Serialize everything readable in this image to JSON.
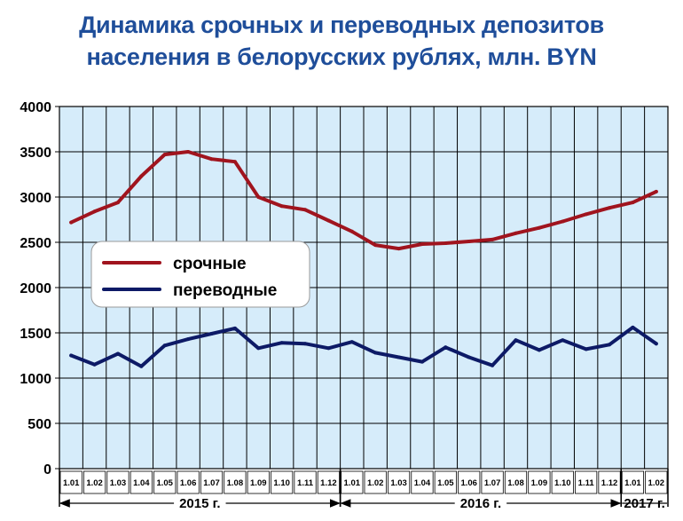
{
  "title_lines": [
    "Динамика срочных и переводных депозитов",
    "населения в белорусских рублях, млн. BYN"
  ],
  "colors": {
    "plot_bg": "#d6ecfa",
    "grid": "#000000",
    "title": "#1f4e9a"
  },
  "chart_data": {
    "type": "line",
    "title": "Динамика срочных и переводных депозитов населения в белорусских рублях, млн. BYN",
    "xlabel": "",
    "ylabel": "",
    "ylim": [
      0,
      4000
    ],
    "yticks": [
      "0",
      "500",
      "1000",
      "1500",
      "2000",
      "2500",
      "3000",
      "3500",
      "4000"
    ],
    "grid": true,
    "legend_position": "center-left",
    "categories": [
      "1.01",
      "1.02",
      "1.03",
      "1.04",
      "1.05",
      "1.06",
      "1.07",
      "1.08",
      "1.09",
      "1.10",
      "1.11",
      "1.12",
      "1.01",
      "1.02",
      "1.03",
      "1.04",
      "1.05",
      "1.06",
      "1.07",
      "1.08",
      "1.09",
      "1.10",
      "1.11",
      "1.12",
      "1.01",
      "1.02"
    ],
    "periods": [
      {
        "label": "2015 г.",
        "start": 0,
        "end": 11
      },
      {
        "label": "2016 г.",
        "start": 12,
        "end": 23
      },
      {
        "label": "2017 г.",
        "start": 24,
        "end": 25
      }
    ],
    "series": [
      {
        "name": "срочные",
        "color": "#a0141e",
        "values": [
          2720,
          2840,
          2940,
          3230,
          3470,
          3500,
          3420,
          3390,
          3000,
          2900,
          2860,
          2740,
          2620,
          2470,
          2430,
          2480,
          2490,
          2510,
          2530,
          2600,
          2660,
          2730,
          2810,
          2880,
          2940,
          3060
        ]
      },
      {
        "name": "переводные",
        "color": "#0d1a66",
        "values": [
          1250,
          1150,
          1270,
          1130,
          1360,
          1430,
          1490,
          1550,
          1330,
          1390,
          1380,
          1330,
          1400,
          1280,
          1230,
          1180,
          1340,
          1230,
          1140,
          1420,
          1310,
          1420,
          1320,
          1370,
          1560,
          1380
        ]
      }
    ]
  }
}
